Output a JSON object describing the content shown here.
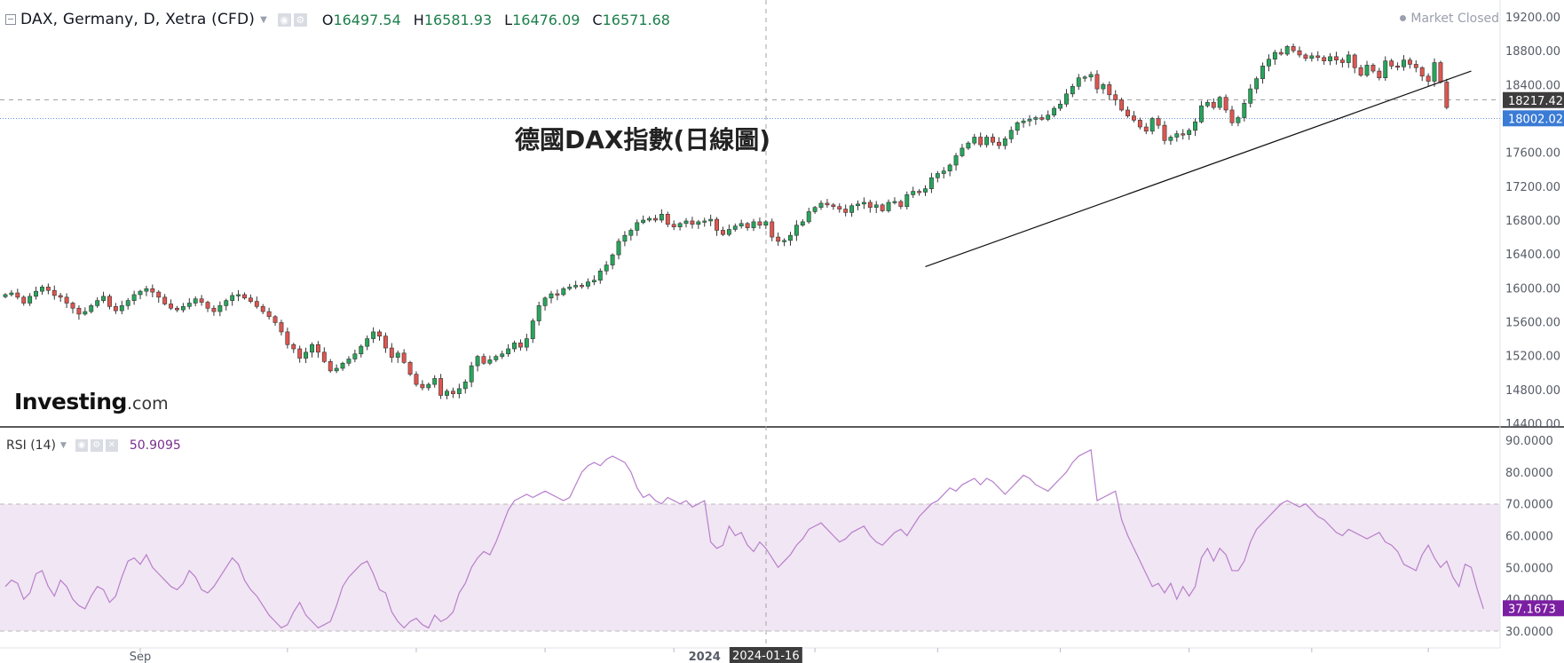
{
  "header": {
    "symbol": "DAX, Germany, D, Xetra (CFD)",
    "open_label": "O",
    "open": "16497.54",
    "high_label": "H",
    "high": "16581.93",
    "low_label": "L",
    "low": "16476.09",
    "close_label": "C",
    "close": "16571.68",
    "market_status": "Market Closed"
  },
  "annotation": "德國DAX指數(日線圖)",
  "logo": {
    "brand": "Investing",
    "domain": ".com"
  },
  "rsi_legend": {
    "name": "RSI (14)",
    "value": "50.9095"
  },
  "colors": {
    "up": "#26a65b",
    "down": "#e0554f",
    "rsi_line": "#b77fcb",
    "rsi_band": "#f1e6f3",
    "label_dark": "#3d3d3d",
    "label_blue": "#3a7bd5",
    "label_purple": "#7b1fa2"
  },
  "chart_data": [
    {
      "type": "candlestick",
      "title": "",
      "ylim": [
        14400,
        19200
      ],
      "yticks": [
        "19200.00",
        "18800.00",
        "18400.00",
        "18000.00",
        "17600.00",
        "17200.00",
        "16800.00",
        "16400.00",
        "16000.00",
        "15600.00",
        "15200.00",
        "14800.00",
        "14400.00"
      ],
      "price_labels": [
        {
          "value": 18217.42,
          "text": "18217.42",
          "style": "dark"
        },
        {
          "value": 18002.02,
          "text": "18002.02",
          "style": "blue"
        }
      ],
      "trendline": {
        "from_index": 150,
        "from_value": 16250,
        "to_index": 239,
        "to_value": 18560
      },
      "x_labels": [
        {
          "index": 22,
          "text": "Sep"
        },
        {
          "index": 114,
          "text": "2024"
        },
        {
          "index": 124,
          "text": "2024-01-16",
          "style": "crosshair"
        }
      ],
      "close": [
        15920,
        15940,
        15890,
        15820,
        15900,
        15960,
        16010,
        15970,
        15910,
        15890,
        15820,
        15760,
        15690,
        15720,
        15790,
        15850,
        15900,
        15780,
        15730,
        15790,
        15850,
        15920,
        15960,
        15990,
        15950,
        15890,
        15810,
        15760,
        15740,
        15780,
        15820,
        15870,
        15830,
        15760,
        15720,
        15790,
        15850,
        15910,
        15920,
        15880,
        15840,
        15780,
        15720,
        15660,
        15590,
        15480,
        15330,
        15280,
        15170,
        15240,
        15330,
        15240,
        15130,
        15020,
        15050,
        15110,
        15160,
        15220,
        15310,
        15400,
        15480,
        15430,
        15290,
        15180,
        15230,
        15120,
        14980,
        14860,
        14820,
        14860,
        14930,
        14730,
        14780,
        14750,
        14810,
        14890,
        15080,
        15190,
        15110,
        15150,
        15190,
        15220,
        15280,
        15350,
        15300,
        15400,
        15610,
        15790,
        15880,
        15930,
        15920,
        15990,
        16010,
        16030,
        16020,
        16070,
        16090,
        16200,
        16270,
        16390,
        16550,
        16620,
        16680,
        16770,
        16800,
        16820,
        16800,
        16870,
        16750,
        16720,
        16760,
        16790,
        16750,
        16780,
        16790,
        16810,
        16680,
        16630,
        16690,
        16730,
        16760,
        16710,
        16780,
        16740,
        16780,
        16600,
        16550,
        16560,
        16620,
        16740,
        16780,
        16900,
        16950,
        17000,
        16980,
        16960,
        16930,
        16890,
        16970,
        16990,
        17010,
        16950,
        16980,
        16910,
        17010,
        17020,
        16960,
        17100,
        17140,
        17130,
        17170,
        17300,
        17350,
        17380,
        17450,
        17560,
        17650,
        17710,
        17780,
        17690,
        17780,
        17720,
        17680,
        17760,
        17860,
        17950,
        17970,
        17990,
        18010,
        17990,
        18040,
        18120,
        18170,
        18290,
        18380,
        18480,
        18490,
        18520,
        18350,
        18400,
        18280,
        18220,
        18100,
        18030,
        17980,
        17900,
        17850,
        18000,
        17920,
        17740,
        17780,
        17820,
        17810,
        17860,
        17960,
        18150,
        18190,
        18130,
        18250,
        18100,
        17950,
        18010,
        18180,
        18350,
        18470,
        18620,
        18700,
        18780,
        18760,
        18850,
        18800,
        18750,
        18710,
        18740,
        18720,
        18680,
        18730,
        18690,
        18660,
        18750,
        18600,
        18510,
        18630,
        18560,
        18480,
        18680,
        18620,
        18610,
        18690,
        18640,
        18600,
        18500,
        18440,
        18660,
        18430,
        18130
      ]
    },
    {
      "type": "line",
      "name": "RSI (14)",
      "ylim": [
        30,
        90
      ],
      "yticks": [
        "90.0000",
        "80.0000",
        "70.0000",
        "60.0000",
        "50.0000",
        "40.0000",
        "30.0000"
      ],
      "band": [
        30,
        70
      ],
      "last_label": {
        "value": 37.1673,
        "text": "37.1673"
      },
      "values": [
        44,
        46,
        45,
        40,
        42,
        48,
        49,
        44,
        41,
        46,
        44,
        40,
        38,
        37,
        41,
        44,
        43,
        39,
        41,
        47,
        52,
        53,
        51,
        54,
        50,
        48,
        46,
        44,
        43,
        45,
        49,
        47,
        43,
        42,
        44,
        47,
        50,
        53,
        51,
        46,
        43,
        41,
        38,
        35,
        33,
        31,
        32,
        36,
        39,
        35,
        33,
        31,
        32,
        33,
        38,
        44,
        47,
        49,
        51,
        52,
        48,
        43,
        42,
        36,
        33,
        31,
        33,
        34,
        32,
        31,
        35,
        33,
        34,
        36,
        42,
        45,
        50,
        53,
        55,
        54,
        58,
        63,
        68,
        71,
        72,
        73,
        72,
        73,
        74,
        73,
        72,
        71,
        72,
        76,
        80,
        82,
        83,
        82,
        84,
        85,
        84,
        83,
        80,
        75,
        72,
        73,
        71,
        70,
        72,
        71,
        70,
        71,
        69,
        70,
        71,
        58,
        56,
        57,
        63,
        60,
        61,
        57,
        55,
        58,
        56,
        53,
        50,
        52,
        54,
        57,
        59,
        62,
        63,
        64,
        62,
        60,
        58,
        59,
        61,
        62,
        63,
        60,
        58,
        57,
        59,
        61,
        62,
        60,
        63,
        66,
        68,
        70,
        71,
        73,
        75,
        74,
        76,
        77,
        78,
        76,
        78,
        77,
        75,
        73,
        75,
        77,
        79,
        78,
        76,
        75,
        74,
        76,
        78,
        80,
        83,
        85,
        86,
        87,
        71,
        72,
        73,
        74,
        65,
        60,
        56,
        52,
        48,
        44,
        45,
        42,
        45,
        40,
        44,
        41,
        44,
        53,
        56,
        52,
        56,
        54,
        49,
        49,
        52,
        58,
        62,
        64,
        66,
        68,
        70,
        71,
        70,
        69,
        70,
        68,
        66,
        65,
        63,
        61,
        60,
        62,
        61,
        60,
        59,
        60,
        61,
        58,
        57,
        55,
        51,
        50,
        49,
        54,
        57,
        53,
        50,
        52,
        47,
        44,
        51,
        50,
        43,
        37
      ]
    }
  ]
}
